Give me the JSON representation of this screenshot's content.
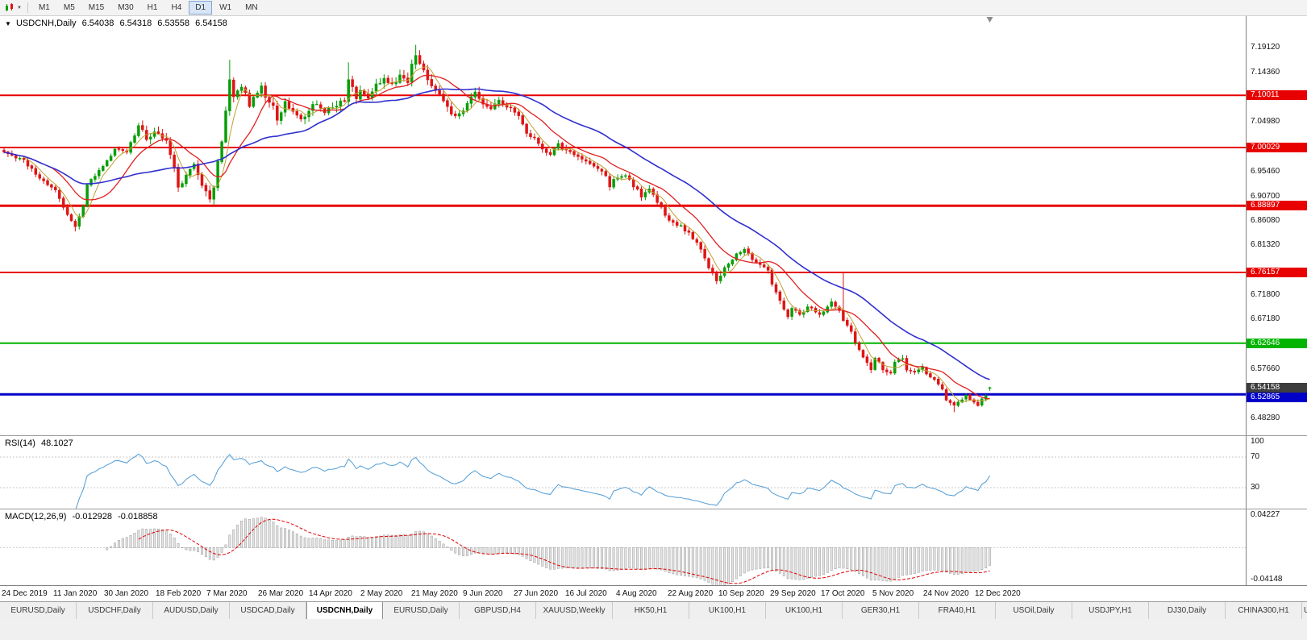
{
  "toolbar": {
    "timeframes": [
      "M1",
      "M5",
      "M15",
      "M30",
      "H1",
      "H4",
      "D1",
      "W1",
      "MN"
    ],
    "active_timeframe": "D1"
  },
  "chart": {
    "symbol_header": {
      "symbol": "USDCNH,Daily",
      "open": "6.54038",
      "high": "6.54318",
      "low": "6.53558",
      "close": "6.54158"
    }
  },
  "rsi": {
    "label": "RSI(14)",
    "value": "48.1027",
    "axis": [
      "100",
      "70",
      "30"
    ]
  },
  "macd": {
    "label": "MACD(12,26,9)",
    "value_main": "-0.012928",
    "value_signal": "-0.018858",
    "axis_top": "0.04227",
    "axis_bottom": "-0.04148"
  },
  "tabs": {
    "items": [
      "EURUSD,Daily",
      "USDCHF,Daily",
      "AUDUSD,Daily",
      "USDCAD,Daily",
      "USDCNH,Daily",
      "EURUSD,Daily",
      "GBPUSD,H4",
      "XAUUSD,Weekly",
      "HK50,H1",
      "UK100,H1",
      "UK100,H1",
      "GER30,H1",
      "FRA40,H1",
      "USOil,Daily",
      "USDJPY,H1",
      "DJ30,Daily",
      "CHINA300,H1",
      "U"
    ],
    "active_index": 4
  },
  "chart_data": {
    "type": "candlestick",
    "symbol": "USDCNH",
    "timeframe": "Daily",
    "candles": 250,
    "seed": 11,
    "up_color": "#089E08",
    "down_color": "#E01414",
    "price_axis": {
      "top": 7.2513,
      "bottom": 6.4505,
      "ticks": [
        "7.19120",
        "7.14360",
        "7.04980",
        "6.95460",
        "6.90700",
        "6.86080",
        "6.81320",
        "6.71800",
        "6.67180",
        "6.57660",
        "6.48280"
      ]
    },
    "current_price": "6.54158",
    "last_candle": {
      "o": 6.54038,
      "h": 6.54318,
      "l": 6.53558,
      "c": 6.54158
    },
    "hlines": [
      {
        "price": 7.10011,
        "label": "7.10011",
        "color": "#E80000",
        "width": 2
      },
      {
        "price": 7.00029,
        "label": "7.00029",
        "color": "#E80000",
        "width": 2
      },
      {
        "price": 6.88897,
        "label": "6.88897",
        "color": "#E80000",
        "width": 3
      },
      {
        "price": 6.76157,
        "label": "6.76157",
        "color": "#E80000",
        "width": 2
      },
      {
        "price": 6.62646,
        "label": "6.62646",
        "color": "#00B400",
        "width": 2
      },
      {
        "price": 6.52865,
        "label": "6.52865",
        "color": "#0000C8",
        "width": 3
      }
    ],
    "moving_averages": [
      {
        "period": 5,
        "color": "#C0A030",
        "width": 1
      },
      {
        "period": 13,
        "color": "#E02020",
        "width": 1.3
      },
      {
        "period": 34,
        "color": "#3030D0",
        "width": 1.6
      }
    ],
    "x_axis_labels": [
      "24 Dec 2019",
      "11 Jan 2020",
      "30 Jan 2020",
      "18 Feb 2020",
      "7 Mar 2020",
      "26 Mar 2020",
      "14 Apr 2020",
      "2 May 2020",
      "21 May 2020",
      "9 Jun 2020",
      "27 Jun 2020",
      "16 Jul 2020",
      "4 Aug 2020",
      "22 Aug 2020",
      "10 Sep 2020",
      "29 Sep 2020",
      "17 Oct 2020",
      "5 Nov 2020",
      "24 Nov 2020",
      "12 Dec 2020"
    ],
    "close_path": [
      [
        0,
        6.993
      ],
      [
        5,
        6.975
      ],
      [
        10,
        6.935
      ],
      [
        13,
        6.92
      ],
      [
        15,
        6.885
      ],
      [
        18,
        6.848
      ],
      [
        20,
        6.89
      ],
      [
        21,
        6.928
      ],
      [
        24,
        6.958
      ],
      [
        26,
        6.975
      ],
      [
        28,
        6.998
      ],
      [
        31,
        6.99
      ],
      [
        34,
        7.043
      ],
      [
        36,
        7.02
      ],
      [
        39,
        7.03
      ],
      [
        41,
        7.01
      ],
      [
        43,
        6.958
      ],
      [
        44,
        6.922
      ],
      [
        46,
        6.948
      ],
      [
        48,
        6.968
      ],
      [
        50,
        6.93
      ],
      [
        52,
        6.902
      ],
      [
        53,
        6.928
      ],
      [
        55,
        7.015
      ],
      [
        56,
        7.075
      ],
      [
        57,
        7.128
      ],
      [
        58,
        7.098
      ],
      [
        60,
        7.118
      ],
      [
        62,
        7.082
      ],
      [
        63,
        7.1
      ],
      [
        65,
        7.118
      ],
      [
        66,
        7.098
      ],
      [
        68,
        7.078
      ],
      [
        69,
        7.052
      ],
      [
        71,
        7.088
      ],
      [
        73,
        7.068
      ],
      [
        75,
        7.058
      ],
      [
        77,
        7.068
      ],
      [
        79,
        7.088
      ],
      [
        81,
        7.068
      ],
      [
        83,
        7.078
      ],
      [
        86,
        7.088
      ],
      [
        87,
        7.128
      ],
      [
        89,
        7.098
      ],
      [
        90,
        7.108
      ],
      [
        92,
        7.098
      ],
      [
        94,
        7.118
      ],
      [
        96,
        7.128
      ],
      [
        98,
        7.118
      ],
      [
        100,
        7.138
      ],
      [
        102,
        7.128
      ],
      [
        103,
        7.158
      ],
      [
        104,
        7.178
      ],
      [
        106,
        7.148
      ],
      [
        107,
        7.128
      ],
      [
        109,
        7.108
      ],
      [
        111,
        7.088
      ],
      [
        112,
        7.078
      ],
      [
        114,
        7.058
      ],
      [
        116,
        7.068
      ],
      [
        117,
        7.088
      ],
      [
        119,
        7.108
      ],
      [
        121,
        7.088
      ],
      [
        123,
        7.078
      ],
      [
        125,
        7.088
      ],
      [
        127,
        7.078
      ],
      [
        129,
        7.068
      ],
      [
        130,
        7.058
      ],
      [
        132,
        7.028
      ],
      [
        134,
        7.018
      ],
      [
        136,
        6.998
      ],
      [
        138,
        6.988
      ],
      [
        140,
        7.008
      ],
      [
        141,
        6.998
      ],
      [
        144,
        6.988
      ],
      [
        146,
        6.978
      ],
      [
        148,
        6.968
      ],
      [
        150,
        6.958
      ],
      [
        152,
        6.948
      ],
      [
        153,
        6.928
      ],
      [
        154,
        6.938
      ],
      [
        157,
        6.948
      ],
      [
        159,
        6.928
      ],
      [
        161,
        6.908
      ],
      [
        163,
        6.918
      ],
      [
        165,
        6.898
      ],
      [
        167,
        6.868
      ],
      [
        169,
        6.858
      ],
      [
        171,
        6.848
      ],
      [
        173,
        6.838
      ],
      [
        175,
        6.818
      ],
      [
        177,
        6.788
      ],
      [
        179,
        6.758
      ],
      [
        180,
        6.748
      ],
      [
        182,
        6.768
      ],
      [
        183,
        6.778
      ],
      [
        185,
        6.798
      ],
      [
        187,
        6.808
      ],
      [
        189,
        6.788
      ],
      [
        191,
        6.778
      ],
      [
        193,
        6.768
      ],
      [
        194,
        6.738
      ],
      [
        196,
        6.708
      ],
      [
        198,
        6.678
      ],
      [
        199,
        6.692
      ],
      [
        201,
        6.68
      ],
      [
        203,
        6.695
      ],
      [
        206,
        6.684
      ],
      [
        208,
        6.695
      ],
      [
        209,
        6.705
      ],
      [
        211,
        6.688
      ],
      [
        212,
        6.668
      ],
      [
        214,
        6.648
      ],
      [
        215,
        6.628
      ],
      [
        217,
        6.598
      ],
      [
        219,
        6.578
      ],
      [
        220,
        6.598
      ],
      [
        222,
        6.578
      ],
      [
        224,
        6.568
      ],
      [
        225,
        6.588
      ],
      [
        227,
        6.598
      ],
      [
        228,
        6.578
      ],
      [
        230,
        6.568
      ],
      [
        232,
        6.578
      ],
      [
        233,
        6.568
      ],
      [
        235,
        6.558
      ],
      [
        237,
        6.538
      ],
      [
        238,
        6.518
      ],
      [
        240,
        6.508
      ],
      [
        242,
        6.518
      ],
      [
        243,
        6.528
      ],
      [
        244,
        6.518
      ],
      [
        246,
        6.508
      ],
      [
        248,
        6.528
      ],
      [
        249,
        6.54158
      ]
    ],
    "spikes": [
      {
        "i": 18,
        "low": 6.84
      },
      {
        "i": 57,
        "high": 7.168
      },
      {
        "i": 87,
        "high": 7.163
      },
      {
        "i": 104,
        "high": 7.1965
      },
      {
        "i": 212,
        "high": 6.763
      },
      {
        "i": 240,
        "low": 6.4945
      }
    ],
    "noise_zones": [
      [
        0,
        0.005
      ],
      [
        35,
        0.009
      ],
      [
        125,
        0.0065
      ],
      [
        180,
        0.0055
      ],
      [
        235,
        0.004
      ]
    ],
    "rsi": {
      "period": 14,
      "levels": [
        70,
        30
      ],
      "color": "#4F9BD5",
      "last": 48.1027
    },
    "macd": {
      "fast": 12,
      "slow": 26,
      "signal": 9,
      "range": [
        0.04227,
        -0.04148
      ],
      "hist_fill": "#E2E2E2",
      "hist_stroke": "#9A9A9A",
      "signal_color": "#E00000"
    }
  }
}
